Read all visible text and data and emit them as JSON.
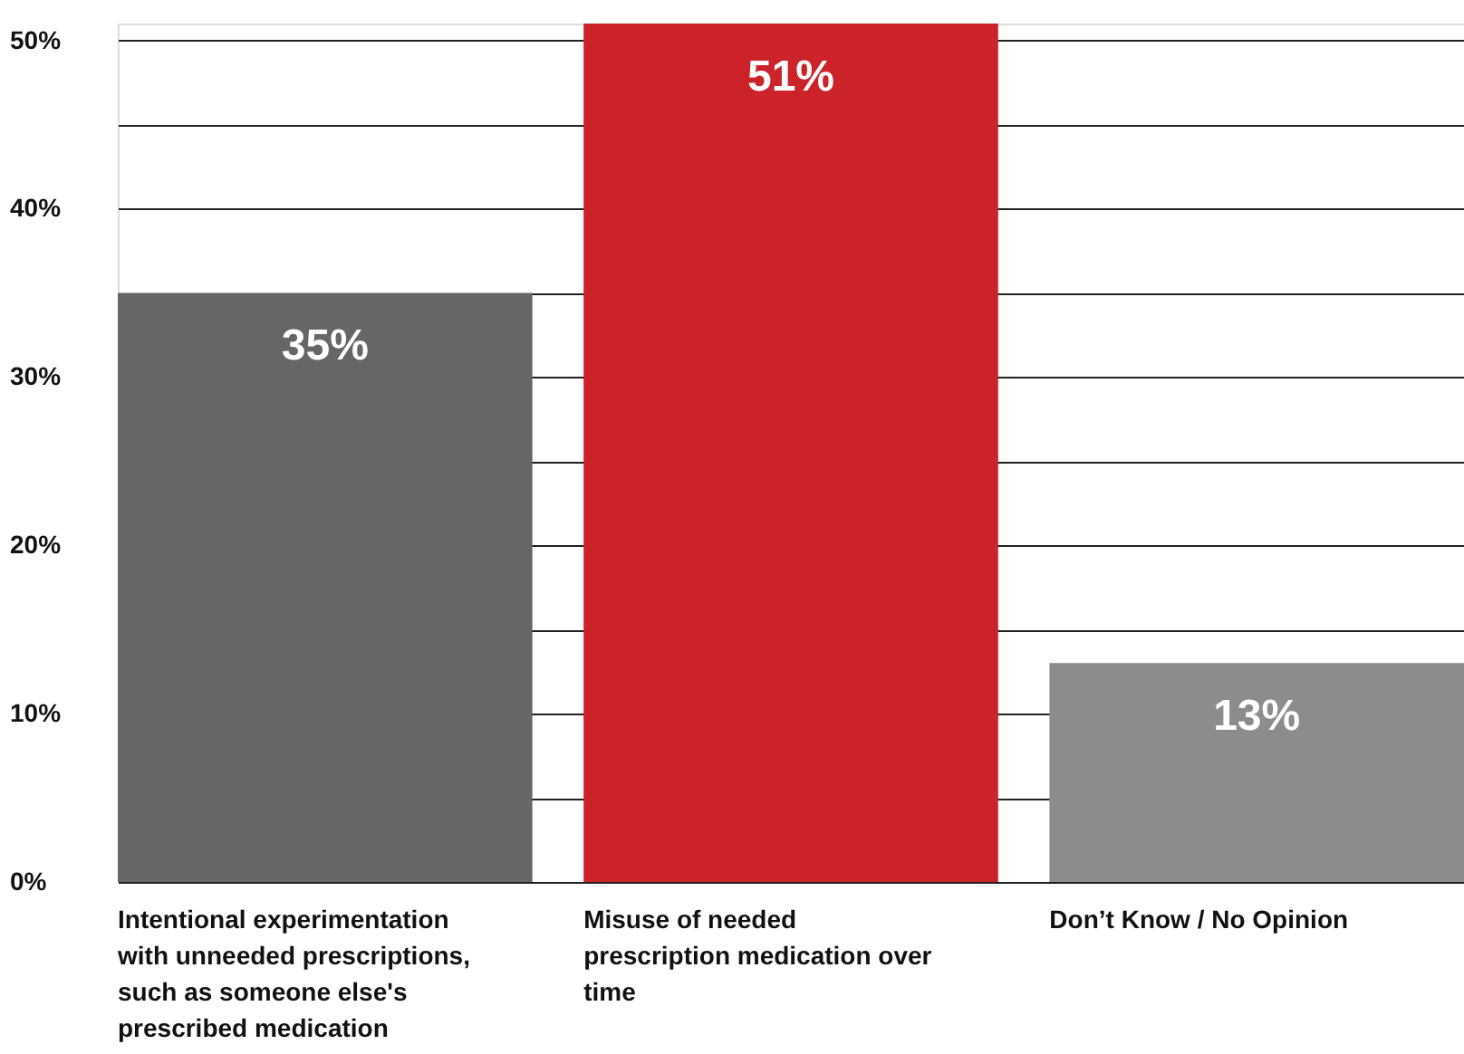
{
  "chart_data": {
    "type": "bar",
    "categories": [
      "Intentional experimentation with unneeded prescriptions, such as someone else's prescribed medication",
      "Misuse of needed prescription medication over time",
      "Don’t Know / No Opinion"
    ],
    "values": [
      35,
      51,
      13
    ],
    "colors": [
      "#666666",
      "#cc2229",
      "#8c8c8c"
    ],
    "value_labels": [
      "35%",
      "51%",
      "13%"
    ],
    "ylim": [
      0,
      51
    ],
    "yticks": [
      {
        "value": 0,
        "label": "0%"
      },
      {
        "value": 5,
        "label": null
      },
      {
        "value": 10,
        "label": "10%"
      },
      {
        "value": 15,
        "label": null
      },
      {
        "value": 20,
        "label": "20%"
      },
      {
        "value": 25,
        "label": null
      },
      {
        "value": 30,
        "label": "30%"
      },
      {
        "value": 35,
        "label": null
      },
      {
        "value": 40,
        "label": "40%"
      },
      {
        "value": 45,
        "label": null
      },
      {
        "value": 50,
        "label": "50%"
      }
    ],
    "grid": "y"
  }
}
